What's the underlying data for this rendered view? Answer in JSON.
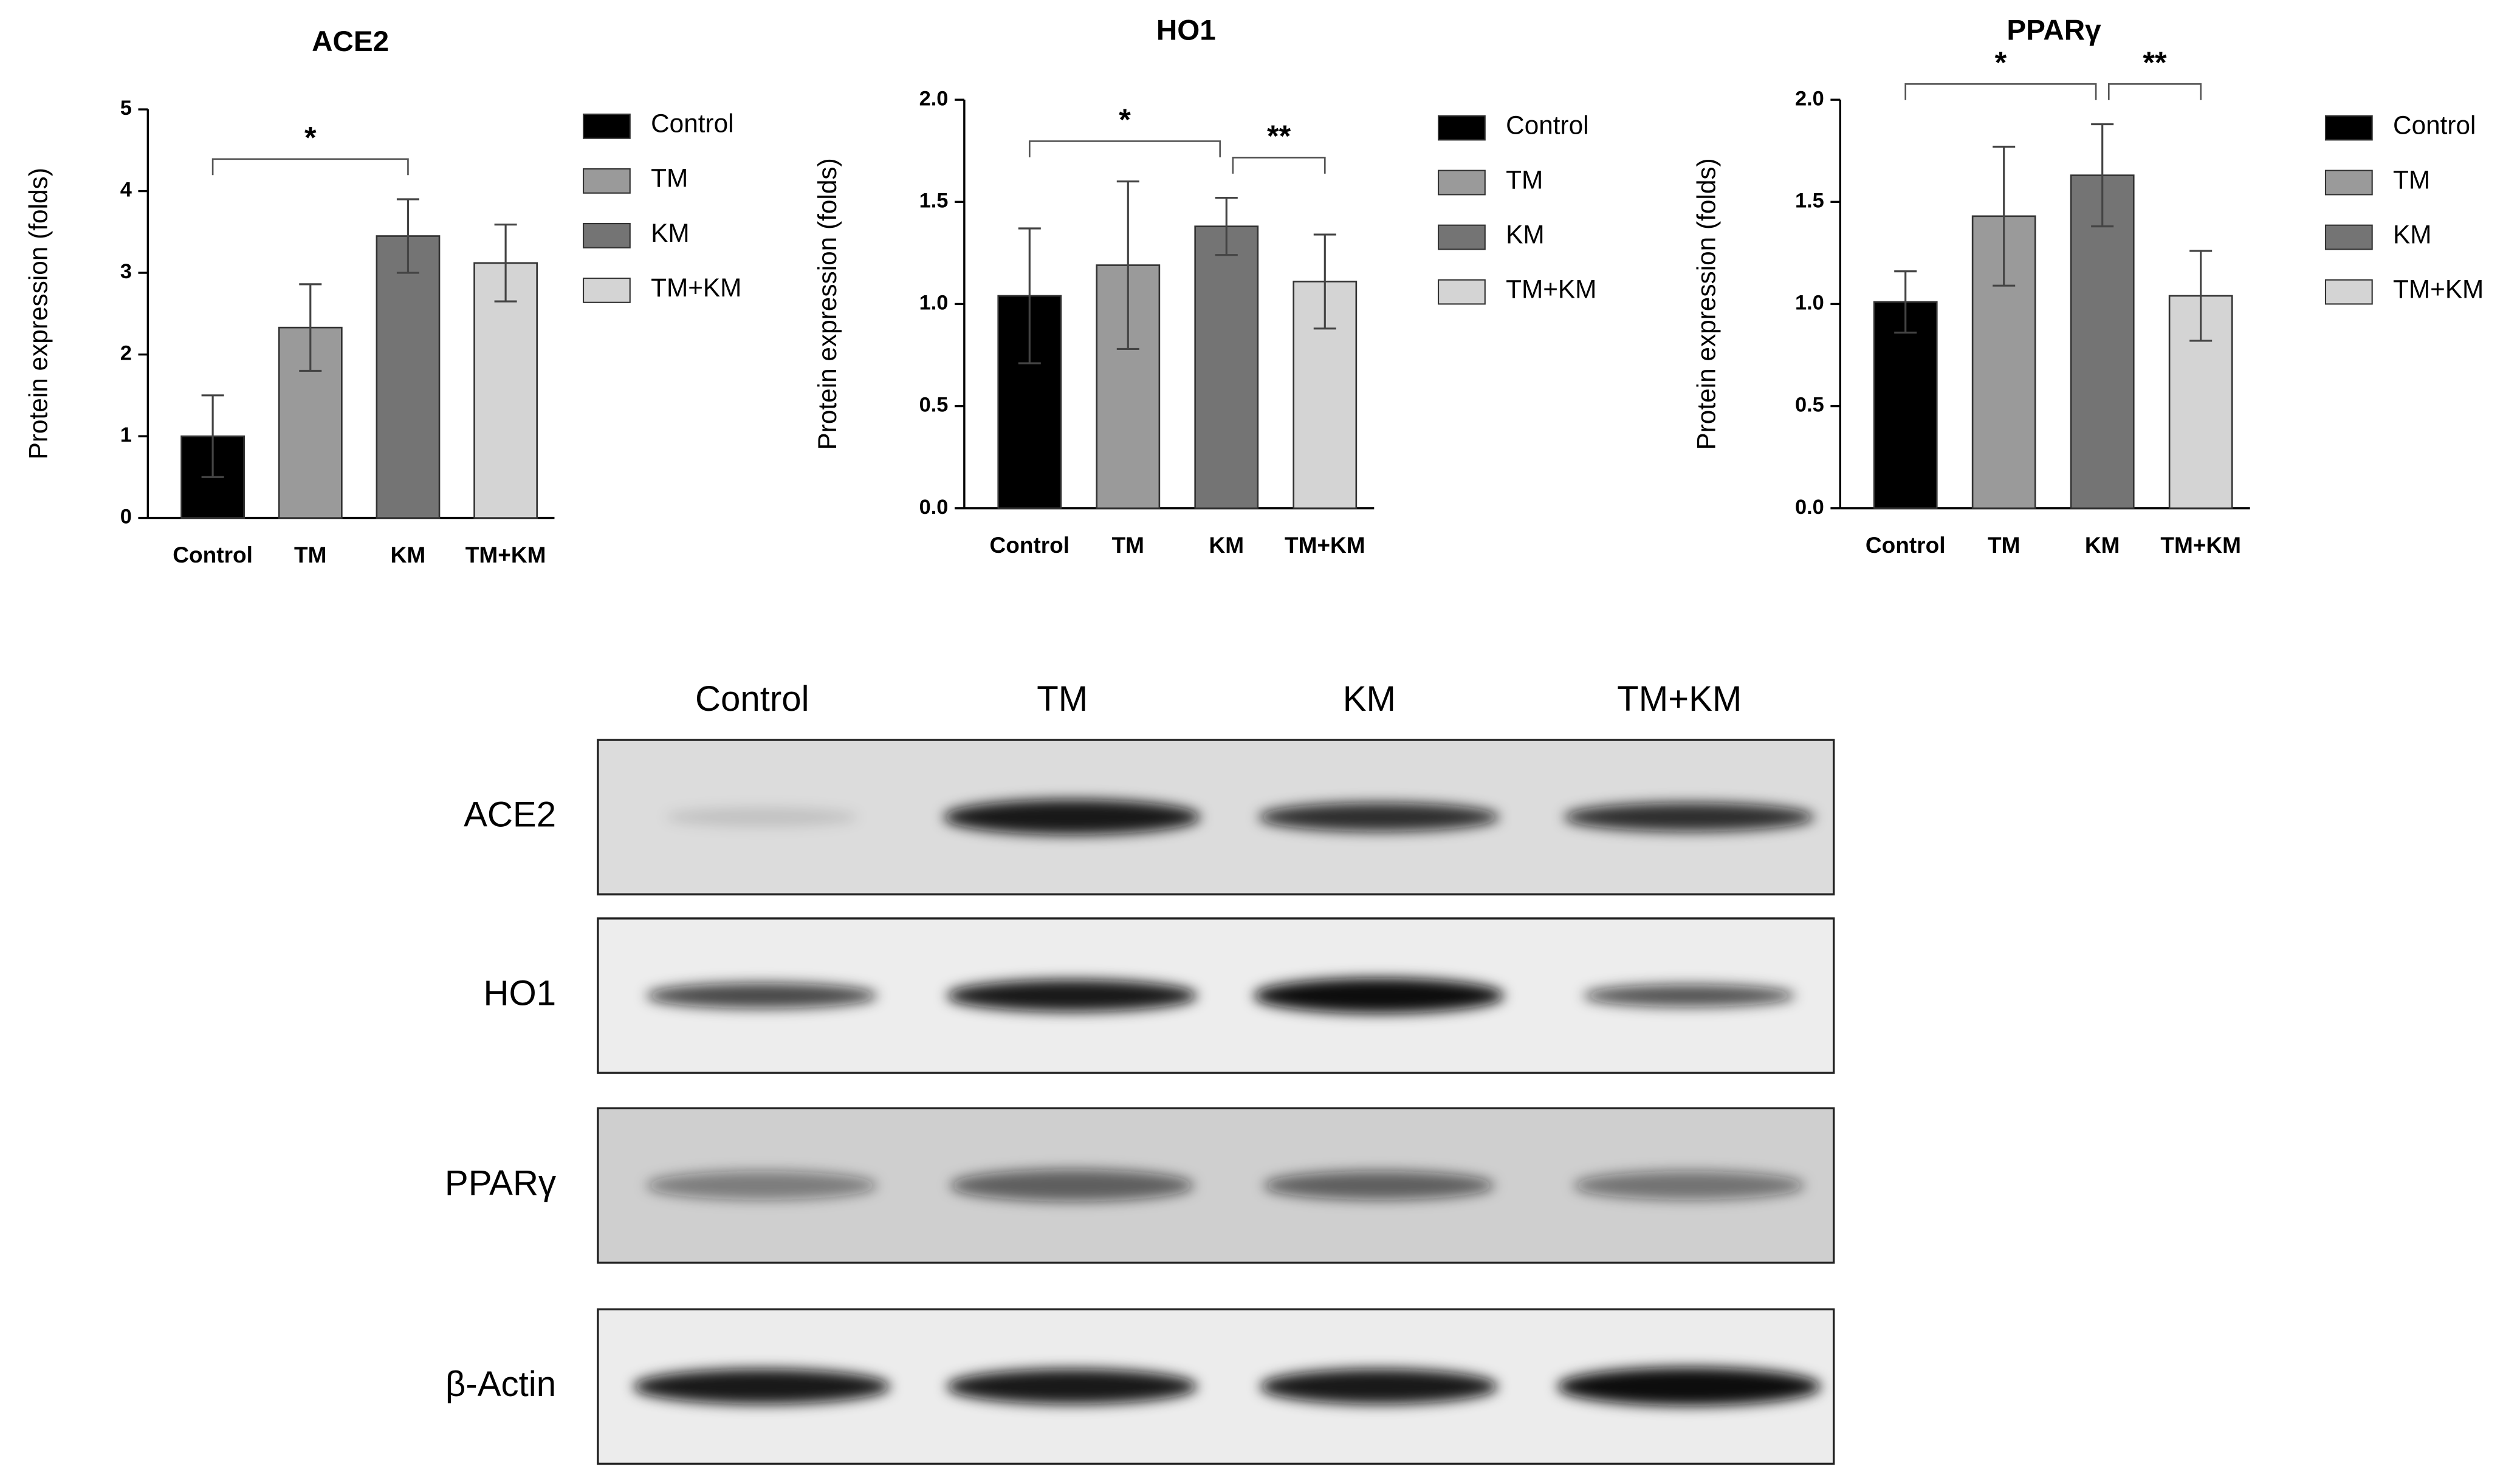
{
  "chart_data": [
    {
      "type": "bar",
      "title": "ACE2",
      "y_label": "Protein expression (folds)",
      "categories": [
        "Control",
        "TM",
        "KM",
        "TM+KM"
      ],
      "values": [
        1.0,
        2.33,
        3.45,
        3.12
      ],
      "errors": [
        0.5,
        0.53,
        0.45,
        0.47
      ],
      "colors": [
        "#000000",
        "#9a9a9a",
        "#747474",
        "#d4d4d4"
      ],
      "ylim": [
        0,
        5
      ],
      "yticks": [
        0,
        1,
        2,
        3,
        4,
        5
      ],
      "annotations": [
        {
          "text": "*",
          "from": "Control",
          "to": "KM"
        }
      ]
    },
    {
      "type": "bar",
      "title": "HO1",
      "y_label": "Protein expression (folds)",
      "categories": [
        "Control",
        "TM",
        "KM",
        "TM+KM"
      ],
      "values": [
        1.04,
        1.19,
        1.38,
        1.11
      ],
      "errors": [
        0.33,
        0.41,
        0.14,
        0.23
      ],
      "colors": [
        "#000000",
        "#9a9a9a",
        "#747474",
        "#d4d4d4"
      ],
      "ylim": [
        0,
        2
      ],
      "yticks": [
        {
          "value": 0,
          "label": "0.0"
        },
        0.5,
        {
          "value": 1,
          "label": "1.0"
        },
        1.5,
        {
          "value": 2,
          "label": "2.0"
        }
      ],
      "annotations": [
        {
          "text": "*",
          "from": "Control",
          "to": "KM"
        },
        {
          "text": "**",
          "from": "KM",
          "to": "TM+KM"
        }
      ]
    },
    {
      "type": "bar",
      "title": "PPARγ",
      "y_label": "Protein expression (folds)",
      "categories": [
        "Control",
        "TM",
        "KM",
        "TM+KM"
      ],
      "values": [
        1.01,
        1.43,
        1.63,
        1.04
      ],
      "errors": [
        0.15,
        0.34,
        0.25,
        0.22
      ],
      "colors": [
        "#000000",
        "#9a9a9a",
        "#747474",
        "#d4d4d4"
      ],
      "ylim": [
        0,
        2
      ],
      "yticks": [
        {
          "value": 0,
          "label": "0.0"
        },
        0.5,
        {
          "value": 1,
          "label": "1.0"
        },
        1.5,
        {
          "value": 2,
          "label": "2.0"
        }
      ],
      "annotations": [
        {
          "text": "*",
          "from": "Control",
          "to": "KM"
        },
        {
          "text": "**",
          "from": "KM",
          "to": "TM+KM"
        }
      ]
    }
  ],
  "blot": {
    "lanes": [
      "Control",
      "TM",
      "KM",
      "TM+KM"
    ],
    "rows": [
      "ACE2",
      "HO1",
      "PPARγ",
      "β-Actin"
    ]
  }
}
